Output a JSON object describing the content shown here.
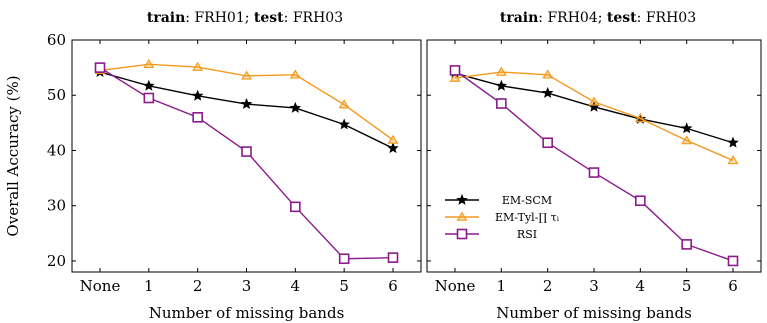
{
  "chart_data": [
    {
      "type": "line",
      "title": {
        "bold1": "train",
        "text1": ": FRH01; ",
        "bold2": "test",
        "text2": ": FRH03"
      },
      "xlabel": "Number of missing bands",
      "ylabel": "Overall Accuracy (%)",
      "categories": [
        "None",
        "1",
        "2",
        "3",
        "4",
        "5",
        "6"
      ],
      "ylim": [
        18,
        60
      ],
      "yticks": [
        20,
        30,
        40,
        50,
        60
      ],
      "show_yticklabels": true,
      "grid": false,
      "series": [
        {
          "name": "EM-SCM",
          "color": "#000000",
          "marker": "star",
          "values": [
            54.2,
            51.7,
            49.9,
            48.4,
            47.7,
            44.7,
            40.4
          ]
        },
        {
          "name": "EM-Tyl-∏ τᵢ",
          "color": "#f39a1e",
          "marker": "triangle",
          "values": [
            54.5,
            55.6,
            55.1,
            53.5,
            53.7,
            48.3,
            41.9
          ]
        },
        {
          "name": "RSI",
          "color": "#8b1a8c",
          "marker": "square",
          "values": [
            55.0,
            49.5,
            46.0,
            39.8,
            29.8,
            20.4,
            20.6
          ]
        }
      ]
    },
    {
      "type": "line",
      "title": {
        "bold1": "train",
        "text1": ": FRH04; ",
        "bold2": "test",
        "text2": ": FRH03"
      },
      "xlabel": "Number of missing bands",
      "ylabel": "",
      "categories": [
        "None",
        "1",
        "2",
        "3",
        "4",
        "5",
        "6"
      ],
      "ylim": [
        18,
        60
      ],
      "yticks": [
        20,
        30,
        40,
        50,
        60
      ],
      "show_yticklabels": false,
      "grid": false,
      "legend_position": "center-left",
      "series": [
        {
          "name": "EM-SCM",
          "color": "#000000",
          "marker": "star",
          "values": [
            54.0,
            51.7,
            50.4,
            47.9,
            45.7,
            44.0,
            41.4
          ]
        },
        {
          "name": "EM-Tyl-∏ τᵢ",
          "color": "#f39a1e",
          "marker": "triangle",
          "values": [
            53.1,
            54.2,
            53.7,
            48.8,
            45.8,
            41.8,
            38.2
          ]
        },
        {
          "name": "RSI",
          "color": "#8b1a8c",
          "marker": "square",
          "values": [
            54.5,
            48.5,
            41.4,
            36.0,
            30.9,
            23.0,
            20.0
          ]
        }
      ]
    }
  ]
}
